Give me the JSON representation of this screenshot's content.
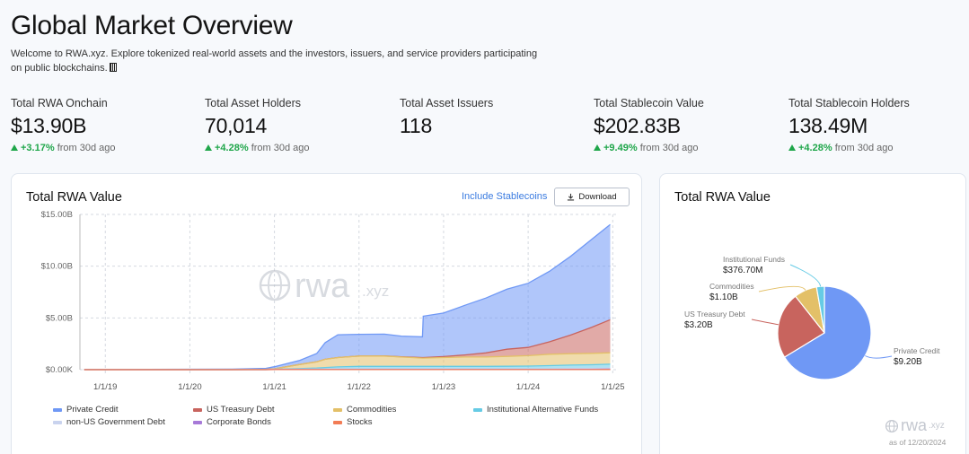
{
  "header": {
    "title": "Global Market Overview",
    "intro": "Welcome to RWA.xyz. Explore tokenized real-world assets and the investors, issuers, and service providers participating on public blockchains."
  },
  "metrics": [
    {
      "label": "Total RWA Onchain",
      "value": "$13.90B",
      "change": "+3.17%",
      "suffix": "from 30d ago"
    },
    {
      "label": "Total Asset Holders",
      "value": "70,014",
      "change": "+4.28%",
      "suffix": "from 30d ago"
    },
    {
      "label": "Total Asset Issuers",
      "value": "118",
      "change": "",
      "suffix": ""
    },
    {
      "label": "Total Stablecoin Value",
      "value": "$202.83B",
      "change": "+9.49%",
      "suffix": "from 30d ago"
    },
    {
      "label": "Total Stablecoin Holders",
      "value": "138.49M",
      "change": "+4.28%",
      "suffix": "from 30d ago"
    }
  ],
  "area_card": {
    "title": "Total RWA Value",
    "include_stablecoins": "Include Stablecoins",
    "download": "Download",
    "watermark": "rwa",
    "watermark_suffix": ".xyz"
  },
  "pie_card": {
    "title": "Total RWA Value",
    "watermark": "rwa",
    "watermark_suffix": ".xyz",
    "as_of": "as of 12/20/2024"
  },
  "colors": {
    "private_credit": "#6f98f5",
    "us_treasury": "#c8645e",
    "commodities": "#e3c068",
    "institutional_funds": "#66cbe5",
    "non_us_gov": "#c9d3ee",
    "corporate_bonds": "#a77ad8",
    "stocks": "#f27c55",
    "accent": "#3a7be0",
    "positive": "#1fa64a"
  },
  "chart_data": [
    {
      "type": "area",
      "title": "Total RWA Value",
      "x_ticks": [
        "1/1/19",
        "1/1/20",
        "1/1/21",
        "1/1/22",
        "1/1/23",
        "1/1/24",
        "1/1/25"
      ],
      "y_ticks": [
        "$0.00K",
        "$5.00B",
        "$10.00B",
        "$15.00B"
      ],
      "ylim": [
        0,
        15
      ],
      "stacked": true,
      "legend": [
        {
          "name": "Private Credit",
          "color": "#6f98f5"
        },
        {
          "name": "US Treasury Debt",
          "color": "#c8645e"
        },
        {
          "name": "Commodities",
          "color": "#e3c068"
        },
        {
          "name": "Institutional Alternative Funds",
          "color": "#66cbe5"
        },
        {
          "name": "non-US Government Debt",
          "color": "#c9d3ee"
        },
        {
          "name": "Corporate Bonds",
          "color": "#a77ad8"
        },
        {
          "name": "Stocks",
          "color": "#f27c55"
        }
      ],
      "x": [
        2018.75,
        2019.0,
        2019.5,
        2020.0,
        2020.5,
        2020.9,
        2021.0,
        2021.3,
        2021.5,
        2021.6,
        2021.75,
        2022.0,
        2022.3,
        2022.5,
        2022.75,
        2022.76,
        2023.0,
        2023.25,
        2023.5,
        2023.75,
        2024.0,
        2024.25,
        2024.5,
        2024.75,
        2024.97
      ],
      "series": [
        {
          "name": "Stocks",
          "values": [
            0,
            0,
            0,
            0,
            0,
            0,
            0.01,
            0.01,
            0.01,
            0.01,
            0.01,
            0.01,
            0.01,
            0.01,
            0.01,
            0.01,
            0.01,
            0.01,
            0.01,
            0.01,
            0.01,
            0.01,
            0.01,
            0.01,
            0.02
          ]
        },
        {
          "name": "Corporate Bonds",
          "values": [
            0,
            0,
            0,
            0,
            0,
            0,
            0.01,
            0.01,
            0.01,
            0.01,
            0.01,
            0.01,
            0.01,
            0.01,
            0.01,
            0.01,
            0.01,
            0.01,
            0.01,
            0.01,
            0.01,
            0.01,
            0.02,
            0.02,
            0.03
          ]
        },
        {
          "name": "non-US Government Debt",
          "values": [
            0,
            0,
            0,
            0,
            0,
            0,
            0.02,
            0.03,
            0.04,
            0.04,
            0.05,
            0.05,
            0.05,
            0.05,
            0.05,
            0.05,
            0.05,
            0.05,
            0.05,
            0.05,
            0.06,
            0.07,
            0.08,
            0.09,
            0.1
          ]
        },
        {
          "name": "Institutional Alternative Funds",
          "values": [
            0,
            0,
            0,
            0,
            0,
            0,
            0,
            0.05,
            0.1,
            0.15,
            0.2,
            0.25,
            0.25,
            0.25,
            0.25,
            0.25,
            0.25,
            0.25,
            0.25,
            0.26,
            0.27,
            0.3,
            0.33,
            0.36,
            0.38
          ]
        },
        {
          "name": "Commodities",
          "values": [
            0,
            0,
            0,
            0,
            0,
            0.03,
            0.05,
            0.4,
            0.6,
            0.8,
            0.9,
            1.0,
            1.0,
            0.9,
            0.8,
            0.8,
            0.85,
            0.9,
            0.9,
            0.95,
            1.0,
            1.1,
            1.1,
            1.1,
            1.1
          ]
        },
        {
          "name": "US Treasury Debt",
          "values": [
            0,
            0,
            0,
            0,
            0,
            0,
            0,
            0,
            0,
            0,
            0,
            0,
            0.01,
            0.02,
            0.05,
            0.05,
            0.1,
            0.2,
            0.4,
            0.7,
            0.8,
            1.2,
            1.8,
            2.5,
            3.2
          ]
        },
        {
          "name": "Private Credit",
          "values": [
            0.02,
            0.02,
            0.03,
            0.04,
            0.05,
            0.1,
            0.2,
            0.4,
            0.8,
            1.6,
            2.2,
            2.1,
            2.1,
            2.0,
            2.0,
            4.0,
            4.2,
            4.8,
            5.3,
            5.8,
            6.2,
            6.8,
            7.6,
            8.5,
            9.2
          ]
        }
      ]
    },
    {
      "type": "pie",
      "title": "Total RWA Value",
      "slices": [
        {
          "label": "Private Credit",
          "value": 9.2,
          "display": "$9.20B",
          "color": "#6f98f5"
        },
        {
          "label": "US Treasury Debt",
          "value": 3.2,
          "display": "$3.20B",
          "color": "#c8645e"
        },
        {
          "label": "Commodities",
          "value": 1.1,
          "display": "$1.10B",
          "color": "#e3c068"
        },
        {
          "label": "Institutional Funds",
          "value": 0.3767,
          "display": "$376.70M",
          "color": "#66cbe5"
        }
      ]
    }
  ]
}
